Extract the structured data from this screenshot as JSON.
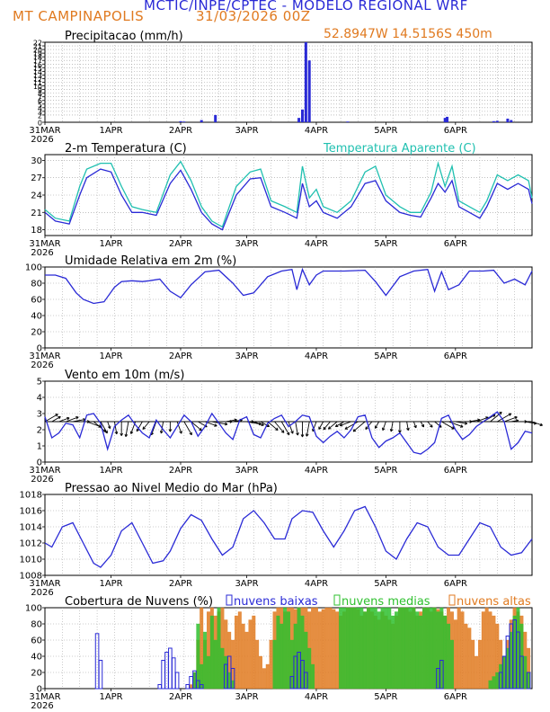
{
  "header": {
    "title": "MCTIC/INPE/CPTEC - MODELO REGIONAL WRF",
    "station": "MT CAMPINAPOLIS",
    "run": "31/03/2026 00Z",
    "location": "52.8947W 14.5156S 450m"
  },
  "colors": {
    "blue": "#2a2ad6",
    "cyan": "#20c0b0",
    "orange": "#e07a20",
    "green": "#2fc02f",
    "grid": "#999999"
  },
  "x_ticks": [
    "31MAR",
    "1APR",
    "2APR",
    "3APR",
    "4APR",
    "5APR",
    "6APR"
  ],
  "year_label": "2026",
  "chart_data": [
    {
      "type": "bar",
      "id": "precip",
      "title": "Precipitacao (mm/h)",
      "ylim": [
        0,
        22
      ],
      "yticks": [
        0,
        2,
        3,
        4,
        5,
        6,
        7,
        8,
        9,
        10,
        11,
        12,
        13,
        14,
        15,
        16,
        17,
        18,
        19,
        20,
        21,
        22
      ],
      "x": [
        1.95,
        2.0,
        2.25,
        2.45,
        3.65,
        3.7,
        3.75,
        3.8,
        4.35,
        5.75,
        5.78,
        6.45,
        6.5,
        6.65,
        6.7
      ],
      "values": [
        0.3,
        0.2,
        0.6,
        2.0,
        1.2,
        3.5,
        22,
        17,
        0.2,
        1.2,
        1.5,
        0.3,
        0.4,
        1.0,
        0.6
      ]
    },
    {
      "type": "line",
      "id": "temp",
      "title": "2-m Temperatura (C)",
      "series_label_2": "Temperatura Aparente (C)",
      "ylim": [
        17,
        31
      ],
      "yticks": [
        18,
        21,
        24,
        27,
        30
      ],
      "series": [
        {
          "name": "Temperatura",
          "x": [
            0,
            0.15,
            0.35,
            0.5,
            0.6,
            0.8,
            0.95,
            1.1,
            1.25,
            1.4,
            1.6,
            1.8,
            1.95,
            2.1,
            2.25,
            2.4,
            2.55,
            2.75,
            2.95,
            3.1,
            3.25,
            3.45,
            3.62,
            3.7,
            3.8,
            3.9,
            4.0,
            4.2,
            4.4,
            4.6,
            4.75,
            4.9,
            5.1,
            5.25,
            5.4,
            5.55,
            5.65,
            5.75,
            5.85,
            5.95,
            6.1,
            6.25,
            6.35,
            6.5,
            6.65,
            6.8,
            6.95,
            7.0
          ],
          "values": [
            21,
            19.5,
            19,
            24,
            27,
            28.5,
            28,
            24,
            21,
            21,
            20.5,
            26,
            28.3,
            25,
            21,
            19,
            18,
            24,
            26.8,
            27,
            22,
            21,
            20,
            26,
            22,
            23,
            21,
            20,
            22,
            26,
            26.5,
            23,
            21,
            20.5,
            20.2,
            23.5,
            26,
            24.5,
            26.5,
            22,
            21,
            20,
            22,
            26,
            25,
            26,
            25,
            22.5
          ]
        },
        {
          "name": "Temperatura Aparente",
          "x": [
            0,
            0.15,
            0.35,
            0.5,
            0.6,
            0.8,
            0.95,
            1.1,
            1.25,
            1.4,
            1.6,
            1.8,
            1.95,
            2.1,
            2.25,
            2.4,
            2.55,
            2.75,
            2.95,
            3.1,
            3.25,
            3.45,
            3.62,
            3.7,
            3.8,
            3.9,
            4.0,
            4.2,
            4.4,
            4.6,
            4.75,
            4.9,
            5.1,
            5.25,
            5.4,
            5.55,
            5.65,
            5.75,
            5.85,
            5.95,
            6.1,
            6.25,
            6.35,
            6.5,
            6.65,
            6.8,
            6.95,
            7.0
          ],
          "values": [
            21.5,
            20,
            19.5,
            25.5,
            28.5,
            29.5,
            29.5,
            25.5,
            22,
            21.5,
            21,
            27.5,
            29.8,
            26.5,
            22,
            19.5,
            18.5,
            25.5,
            28,
            28.5,
            23,
            22,
            21,
            29,
            23.5,
            25,
            22,
            21,
            23,
            28,
            29,
            24,
            22,
            21,
            21,
            24.5,
            29.5,
            25.5,
            29,
            23,
            22,
            21,
            23,
            27.5,
            26.5,
            27.5,
            26.5,
            23.5
          ]
        }
      ]
    },
    {
      "type": "line",
      "id": "rh",
      "title": "Umidade Relativa em 2m (%)",
      "ylim": [
        0,
        100
      ],
      "yticks": [
        0,
        20,
        40,
        60,
        80,
        100
      ],
      "x": [
        0,
        0.15,
        0.3,
        0.45,
        0.55,
        0.7,
        0.85,
        1.0,
        1.1,
        1.25,
        1.4,
        1.5,
        1.65,
        1.8,
        1.95,
        2.1,
        2.3,
        2.5,
        2.7,
        2.85,
        3.0,
        3.2,
        3.4,
        3.55,
        3.62,
        3.7,
        3.8,
        3.9,
        4.0,
        4.3,
        4.6,
        4.75,
        4.9,
        5.1,
        5.3,
        5.5,
        5.6,
        5.7,
        5.8,
        5.95,
        6.1,
        6.3,
        6.45,
        6.6,
        6.75,
        6.9,
        7.0
      ],
      "values": [
        90,
        90,
        86,
        68,
        60,
        55,
        57,
        75,
        82,
        83,
        82,
        83,
        85,
        70,
        62,
        78,
        94,
        96,
        80,
        65,
        68,
        88,
        95,
        97,
        72,
        97,
        78,
        90,
        95,
        95,
        96,
        82,
        65,
        88,
        95,
        97,
        70,
        94,
        72,
        78,
        95,
        95,
        96,
        80,
        85,
        78,
        95
      ]
    },
    {
      "type": "line",
      "id": "wind",
      "title": "Vento em 10m (m/s)",
      "ylim": [
        0,
        5
      ],
      "yticks": [
        0,
        1,
        2,
        3,
        4,
        5
      ],
      "x": [
        0,
        0.1,
        0.2,
        0.3,
        0.4,
        0.5,
        0.6,
        0.7,
        0.8,
        0.9,
        1.0,
        1.1,
        1.2,
        1.3,
        1.4,
        1.5,
        1.6,
        1.7,
        1.8,
        1.9,
        2.0,
        2.1,
        2.2,
        2.3,
        2.4,
        2.5,
        2.6,
        2.7,
        2.8,
        2.9,
        3.0,
        3.1,
        3.2,
        3.3,
        3.4,
        3.5,
        3.6,
        3.7,
        3.8,
        3.9,
        4.0,
        4.1,
        4.2,
        4.3,
        4.4,
        4.5,
        4.6,
        4.7,
        4.8,
        4.9,
        5.0,
        5.1,
        5.2,
        5.3,
        5.4,
        5.5,
        5.6,
        5.7,
        5.8,
        5.9,
        6.0,
        6.1,
        6.2,
        6.3,
        6.4,
        6.5,
        6.6,
        6.7,
        6.8,
        6.9,
        7.0
      ],
      "values": [
        2.8,
        1.5,
        1.8,
        2.4,
        2.3,
        1.5,
        2.9,
        3.0,
        2.4,
        0.8,
        2.2,
        2.6,
        2.9,
        2.3,
        1.8,
        1.5,
        2.6,
        2.0,
        1.5,
        2.2,
        2.9,
        2.5,
        1.6,
        2.2,
        3.0,
        2.4,
        1.8,
        1.4,
        2.6,
        2.8,
        1.7,
        1.5,
        2.4,
        2.7,
        2.9,
        2.2,
        2.5,
        2.9,
        2.8,
        1.6,
        1.2,
        1.6,
        1.9,
        1.5,
        2.0,
        2.8,
        2.9,
        1.5,
        0.9,
        1.3,
        1.5,
        1.8,
        1.2,
        0.6,
        0.5,
        0.8,
        1.2,
        2.7,
        2.9,
        2.0,
        1.4,
        1.7,
        2.2,
        2.5,
        2.8,
        3.1,
        2.5,
        0.8,
        1.2,
        1.9,
        1.8
      ],
      "arrows_dir_deg": [
        60,
        60,
        70,
        70,
        80,
        90,
        110,
        130,
        150,
        160,
        170,
        180,
        190,
        200,
        210,
        220,
        200,
        190,
        180,
        160,
        150,
        130,
        120,
        110,
        100,
        90,
        80,
        80,
        90,
        100,
        110,
        120,
        130,
        140,
        150,
        160,
        170,
        180,
        190,
        200,
        210,
        220,
        230,
        240,
        250,
        240,
        230,
        220,
        210,
        200,
        190,
        180,
        170,
        160,
        150,
        140,
        130,
        120,
        110,
        100,
        90,
        80,
        70,
        60,
        50,
        60,
        70,
        80,
        90,
        100,
        110
      ]
    },
    {
      "type": "line",
      "id": "press",
      "title": "Pressao ao Nivel Medio do Mar (hPa)",
      "ylim": [
        1008,
        1018
      ],
      "yticks": [
        1008,
        1010,
        1012,
        1014,
        1016,
        1018
      ],
      "x": [
        0,
        0.1,
        0.25,
        0.4,
        0.55,
        0.7,
        0.8,
        0.95,
        1.1,
        1.25,
        1.4,
        1.55,
        1.7,
        1.8,
        1.95,
        2.1,
        2.25,
        2.4,
        2.55,
        2.7,
        2.85,
        3.0,
        3.15,
        3.3,
        3.45,
        3.55,
        3.7,
        3.85,
        4.0,
        4.15,
        4.3,
        4.45,
        4.6,
        4.75,
        4.9,
        5.05,
        5.2,
        5.35,
        5.5,
        5.65,
        5.8,
        5.95,
        6.1,
        6.25,
        6.4,
        6.55,
        6.7,
        6.85,
        7.0
      ],
      "values": [
        1012,
        1011.5,
        1014,
        1014.5,
        1012,
        1009.5,
        1009,
        1010.5,
        1013.5,
        1014.5,
        1012,
        1009.5,
        1009.8,
        1011,
        1013.8,
        1015.5,
        1014.8,
        1012.5,
        1010.5,
        1011.5,
        1015,
        1016,
        1014.5,
        1012.5,
        1012.5,
        1015,
        1016,
        1015.8,
        1013.5,
        1011.5,
        1013.5,
        1016,
        1016.5,
        1014,
        1011,
        1010,
        1012.5,
        1014.5,
        1014,
        1011.5,
        1010.5,
        1010.5,
        1012.5,
        1014.5,
        1014,
        1011.5,
        1010.5,
        1010.8,
        1012.5
      ]
    },
    {
      "type": "bar",
      "id": "clouds",
      "title": "Cobertura de Nuvens (%)",
      "ylim": [
        0,
        100
      ],
      "yticks": [
        0,
        20,
        40,
        60,
        80,
        100
      ],
      "legend": [
        "nuvens baixas",
        "nuvens medias",
        "nuvens altas"
      ],
      "series": [
        {
          "name": "nuvens altas",
          "x": [
            2.1,
            2.15,
            2.2,
            2.25,
            2.3,
            2.35,
            2.4,
            2.45,
            2.5,
            2.55,
            2.6,
            2.65,
            2.7,
            2.75,
            2.8,
            2.85,
            2.9,
            2.95,
            3.0,
            3.05,
            3.1,
            3.15,
            3.2,
            3.25,
            3.3,
            3.35,
            3.4,
            3.45,
            3.5,
            3.55,
            3.6,
            3.65,
            3.7,
            3.75,
            3.8,
            3.85,
            3.9,
            3.95,
            4.0,
            4.05,
            4.1,
            4.15,
            4.2,
            4.25,
            4.3,
            4.35,
            4.4,
            4.45,
            4.5,
            4.55,
            4.6,
            4.65,
            4.7,
            4.75,
            4.8,
            4.85,
            4.9,
            4.95,
            5.0,
            5.05,
            5.1,
            5.15,
            5.2,
            5.25,
            5.3,
            5.35,
            5.4,
            5.45,
            5.5,
            5.55,
            5.6,
            5.65,
            5.7,
            5.75,
            5.8,
            5.85,
            5.9,
            5.95,
            6.0,
            6.05,
            6.1,
            6.15,
            6.2,
            6.25,
            6.3,
            6.35,
            6.4,
            6.45,
            6.5,
            6.55,
            6.6,
            6.65,
            6.7,
            6.75,
            6.8,
            6.85,
            6.9,
            6.95
          ],
          "values": [
            5,
            20,
            60,
            100,
            60,
            95,
            100,
            90,
            95,
            100,
            85,
            70,
            60,
            90,
            95,
            80,
            70,
            85,
            90,
            60,
            40,
            25,
            30,
            60,
            95,
            100,
            100,
            95,
            100,
            100,
            98,
            100,
            100,
            100,
            95,
            100,
            100,
            95,
            98,
            100,
            100,
            98,
            95,
            90,
            95,
            100,
            100,
            100,
            98,
            90,
            95,
            100,
            95,
            90,
            85,
            95,
            90,
            85,
            80,
            90,
            100,
            100,
            100,
            95,
            100,
            90,
            95,
            100,
            100,
            95,
            100,
            98,
            95,
            90,
            100,
            95,
            85,
            100,
            95,
            80,
            75,
            60,
            40,
            60,
            95,
            100,
            95,
            90,
            80,
            60,
            40,
            60,
            85,
            100,
            95,
            90,
            70,
            50
          ]
        },
        {
          "name": "nuvens medias",
          "x": [
            2.15,
            2.2,
            2.25,
            2.3,
            2.35,
            2.4,
            2.45,
            2.5,
            2.55,
            2.6,
            2.65,
            2.7,
            3.3,
            3.35,
            3.4,
            3.45,
            3.5,
            3.55,
            3.6,
            3.65,
            3.7,
            3.75,
            3.8,
            3.85,
            4.25,
            4.3,
            4.35,
            4.4,
            4.45,
            4.5,
            4.55,
            4.6,
            4.65,
            4.7,
            4.75,
            4.8,
            4.85,
            4.9,
            4.95,
            5.0,
            5.05,
            5.1,
            5.15,
            5.2,
            5.25,
            5.3,
            5.35,
            5.4,
            5.45,
            5.5,
            5.55,
            5.6,
            5.65,
            5.7,
            5.75,
            5.8,
            5.85,
            6.4,
            6.45,
            6.5,
            6.55,
            6.6,
            6.65,
            6.7,
            6.75,
            6.8,
            6.85,
            6.9,
            6.95
          ],
          "values": [
            20,
            80,
            30,
            70,
            40,
            90,
            60,
            100,
            50,
            40,
            20,
            10,
            60,
            90,
            80,
            100,
            95,
            60,
            80,
            100,
            90,
            70,
            50,
            30,
            100,
            100,
            100,
            100,
            100,
            100,
            100,
            95,
            100,
            100,
            100,
            95,
            100,
            100,
            100,
            90,
            95,
            100,
            100,
            100,
            100,
            100,
            95,
            90,
            100,
            100,
            100,
            100,
            95,
            100,
            90,
            80,
            60,
            10,
            15,
            20,
            30,
            40,
            50,
            70,
            90,
            100,
            80,
            40,
            20
          ]
        },
        {
          "name": "nuvens baixas",
          "x": [
            0.75,
            0.8,
            1.65,
            1.7,
            1.75,
            1.8,
            1.85,
            1.9,
            2.05,
            2.1,
            2.15,
            2.2,
            2.25,
            2.6,
            2.65,
            2.7,
            3.55,
            3.6,
            3.65,
            3.7,
            3.75,
            5.65,
            5.7,
            6.55,
            6.6,
            6.65,
            6.7,
            6.75,
            6.8,
            6.85,
            6.95
          ],
          "values": [
            68,
            35,
            5,
            35,
            45,
            50,
            38,
            20,
            5,
            15,
            22,
            10,
            5,
            30,
            40,
            25,
            15,
            40,
            45,
            35,
            20,
            25,
            35,
            20,
            40,
            65,
            80,
            85,
            70,
            40,
            20
          ]
        }
      ]
    }
  ]
}
